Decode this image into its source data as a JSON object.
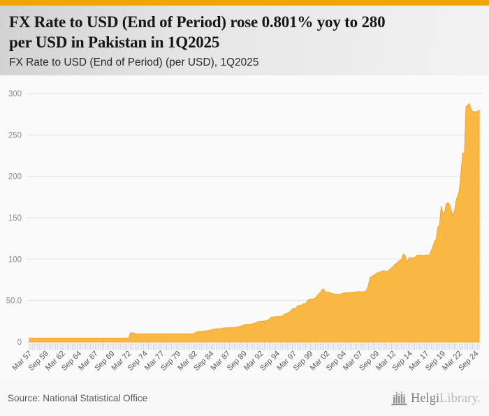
{
  "header": {
    "title_line1": "FX Rate to USD (End of Period) rose 0.801% yoy to 280",
    "title_line2": "per USD in Pakistan in 1Q2025",
    "subtitle": "FX Rate to USD (End of Period) (per USD), 1Q2025"
  },
  "footer": {
    "source": "Source: National Statistical Office",
    "logo_text_primary": "Helgi",
    "logo_text_secondary": "Library."
  },
  "colors": {
    "accent_bar": "#f0a502",
    "area_fill": "#f9b843",
    "area_edge": "#f2a62b",
    "gridline": "#e4e4e4",
    "tick_mark": "#c7d0e4"
  },
  "chart_data": {
    "type": "area",
    "title": "FX Rate to USD (End of Period) (per USD), 1Q2025",
    "series_name": "Pakistan FX Rate to USD (End of Period)",
    "unit": "per USD",
    "frequency": "quarterly",
    "x_start": "Mar 57",
    "x_end": "Mar 25",
    "xlabel": "",
    "ylabel": "",
    "ylim": [
      0,
      300
    ],
    "grid": true,
    "legend": false,
    "y_tick_labels": [
      "300",
      "250",
      "200",
      "150",
      "100",
      "50.0",
      "0"
    ],
    "y_tick_values": [
      300,
      250,
      200,
      150,
      100,
      50,
      0
    ],
    "x_tick_every_n_points": 10,
    "x_tick_labels": [
      "Mar 57",
      "Sep 59",
      "Mar 62",
      "Sep 64",
      "Mar 67",
      "Sep 69",
      "Mar 72",
      "Sep 74",
      "Mar 77",
      "Sep 79",
      "Mar 82",
      "Sep 84",
      "Mar 87",
      "Sep 89",
      "Mar 92",
      "Sep 94",
      "Mar 97",
      "Sep 99",
      "Mar 02",
      "Sep 04",
      "Mar 07",
      "Sep 09",
      "Mar 12",
      "Sep 14",
      "Mar 17",
      "Sep 19",
      "Mar 22",
      "Sep 24"
    ],
    "values": [
      4.76,
      4.76,
      4.76,
      4.76,
      4.76,
      4.76,
      4.76,
      4.76,
      4.76,
      4.76,
      4.76,
      4.76,
      4.76,
      4.76,
      4.76,
      4.76,
      4.76,
      4.76,
      4.76,
      4.76,
      4.76,
      4.76,
      4.76,
      4.76,
      4.76,
      4.76,
      4.76,
      4.76,
      4.76,
      4.76,
      4.76,
      4.76,
      4.76,
      4.76,
      4.76,
      4.76,
      4.76,
      4.76,
      4.76,
      4.76,
      4.76,
      4.76,
      4.76,
      4.76,
      4.76,
      4.76,
      4.76,
      4.76,
      4.76,
      4.76,
      4.76,
      4.76,
      4.76,
      4.76,
      4.76,
      4.76,
      4.76,
      4.76,
      4.76,
      4.76,
      4.76,
      11.0,
      11.0,
      11.0,
      9.9,
      9.9,
      9.9,
      9.9,
      9.9,
      9.9,
      9.9,
      9.9,
      9.9,
      9.9,
      9.9,
      9.9,
      9.9,
      9.9,
      9.9,
      9.9,
      9.9,
      9.9,
      9.9,
      9.9,
      9.9,
      9.9,
      9.9,
      9.9,
      9.9,
      9.9,
      9.9,
      9.9,
      9.9,
      9.9,
      9.9,
      9.9,
      9.9,
      9.9,
      9.9,
      9.9,
      10.55,
      11.85,
      12.75,
      12.85,
      12.9,
      13.2,
      13.35,
      13.5,
      13.9,
      14.1,
      14.6,
      15.35,
      15.6,
      15.9,
      16.1,
      15.95,
      16.15,
      16.55,
      17.0,
      17.25,
      17.3,
      17.4,
      17.5,
      17.45,
      17.6,
      18.0,
      18.35,
      18.65,
      19.2,
      20.1,
      20.85,
      21.45,
      21.45,
      21.55,
      21.75,
      21.9,
      22.45,
      23.15,
      24.35,
      24.7,
      24.85,
      25.1,
      25.4,
      25.7,
      26.2,
      27.3,
      29.85,
      30.15,
      30.35,
      30.55,
      30.65,
      30.8,
      30.95,
      31.2,
      33.3,
      34.25,
      35.0,
      35.65,
      37.2,
      40.1,
      40.5,
      40.6,
      43.3,
      44.05,
      44.4,
      45.05,
      46.7,
      46.0,
      48.8,
      51.6,
      51.75,
      51.9,
      52.15,
      53.15,
      56.05,
      58.05,
      60.05,
      63.3,
      64.1,
      59.9,
      60.1,
      60.05,
      59.25,
      58.4,
      58.05,
      57.75,
      57.85,
      57.25,
      57.6,
      58.3,
      59.15,
      59.4,
      59.35,
      59.65,
      59.75,
      59.8,
      60.15,
      60.2,
      60.65,
      60.9,
      60.7,
      60.45,
      60.75,
      61.2,
      62.75,
      68.4,
      78.0,
      79.1,
      80.45,
      81.4,
      83.15,
      84.2,
      84.25,
      85.5,
      86.2,
      85.7,
      85.1,
      86.05,
      87.6,
      89.95,
      90.75,
      94.2,
      94.95,
      97.15,
      98.55,
      99.65,
      105.95,
      105.3,
      98.2,
      98.75,
      102.75,
      100.4,
      101.95,
      101.8,
      104.5,
      104.7,
      104.75,
      104.75,
      104.65,
      104.8,
      104.85,
      104.9,
      105.4,
      110.4,
      115.55,
      121.5,
      124.25,
      139.1,
      140.95,
      164.05,
      156.4,
      154.85,
      166.7,
      168.05,
      166.45,
      159.85,
      152.8,
      157.55,
      170.65,
      176.5,
      183.5,
      204.85,
      228.45,
      226.4,
      283.8,
      286.0,
      287.75,
      281.85,
      277.95,
      278.35,
      277.7,
      278.55,
      280.2
    ]
  }
}
